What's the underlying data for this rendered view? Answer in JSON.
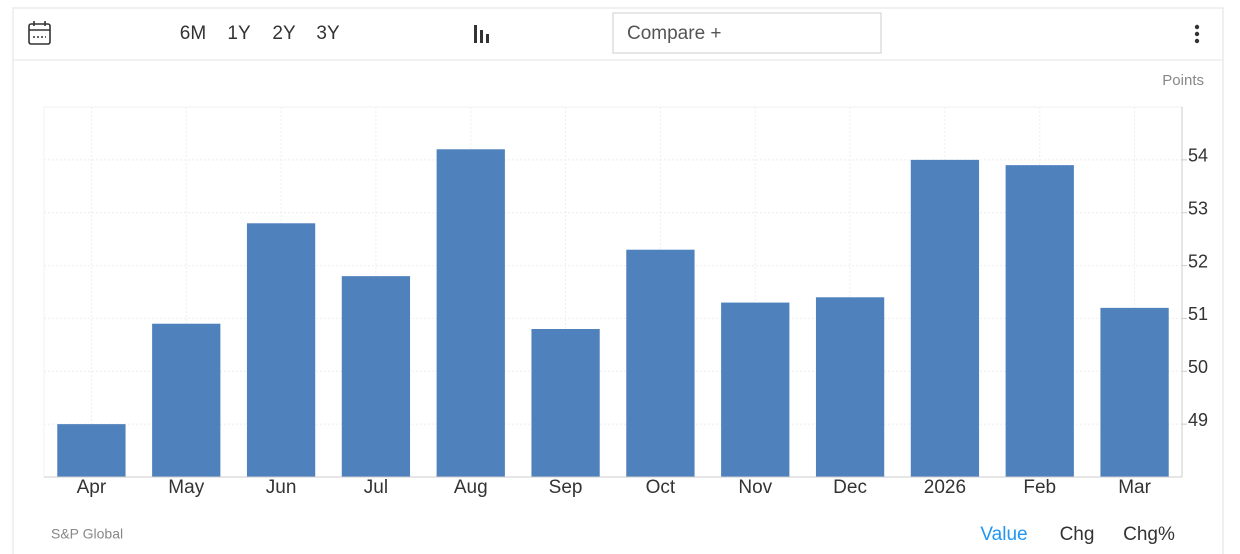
{
  "toolbar": {
    "ranges": [
      "6M",
      "1Y",
      "2Y",
      "3Y"
    ],
    "compare": "Compare +"
  },
  "chart_data": {
    "type": "bar",
    "y_label": "Points",
    "categories": [
      "Apr",
      "May",
      "Jun",
      "Jul",
      "Aug",
      "Sep",
      "Oct",
      "Nov",
      "Dec",
      "2026",
      "Feb",
      "Mar"
    ],
    "values": [
      49.0,
      50.9,
      52.8,
      51.8,
      54.2,
      50.8,
      52.3,
      51.3,
      51.4,
      54.0,
      53.9,
      51.2
    ],
    "color": "#4f81bd",
    "ylim": [
      48,
      55
    ],
    "yticks": [
      49,
      50,
      51,
      52,
      53,
      54
    ],
    "grid": true
  },
  "footer": {
    "source": "S&P Global",
    "tabs": [
      "Value",
      "Chg",
      "Chg%"
    ]
  }
}
